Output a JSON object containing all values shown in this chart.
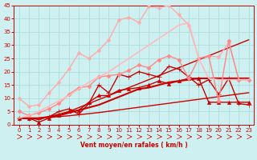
{
  "background_color": "#cff0f0",
  "grid_color": "#aadddd",
  "xlabel": "Vent moyen/en rafales ( km/h )",
  "xlabel_color": "#cc0000",
  "tick_color": "#cc0000",
  "xlim": [
    -0.5,
    23.5
  ],
  "ylim": [
    0,
    45
  ],
  "yticks": [
    0,
    5,
    10,
    15,
    20,
    25,
    30,
    35,
    40,
    45
  ],
  "xticks": [
    0,
    1,
    2,
    3,
    4,
    5,
    6,
    7,
    8,
    9,
    10,
    11,
    12,
    13,
    14,
    15,
    16,
    17,
    18,
    19,
    20,
    21,
    22,
    23
  ],
  "lines": [
    {
      "x": [
        0,
        1,
        2,
        3,
        4,
        5,
        6,
        7,
        8,
        9,
        10,
        11,
        12,
        13,
        14,
        15,
        16,
        17,
        18,
        19,
        20,
        21,
        22,
        23
      ],
      "y": [
        2.5,
        2.5,
        2.5,
        2.8,
        3.1,
        3.4,
        3.8,
        4.2,
        4.6,
        5.1,
        5.6,
        6.1,
        6.6,
        7.1,
        7.6,
        8.1,
        8.6,
        9.1,
        9.6,
        10.1,
        10.6,
        11.1,
        11.6,
        12.1
      ],
      "color": "#cc0000",
      "linewidth": 1.0,
      "marker": null,
      "linestyle": "-"
    },
    {
      "x": [
        0,
        1,
        2,
        3,
        4,
        5,
        6,
        7,
        8,
        9,
        10,
        11,
        12,
        13,
        14,
        15,
        16,
        17,
        18,
        19,
        20,
        21,
        22,
        23
      ],
      "y": [
        2.5,
        2.5,
        2.5,
        3.0,
        4.0,
        5.0,
        6.5,
        8.0,
        9.5,
        11.0,
        12.5,
        14.0,
        15.5,
        17.0,
        18.5,
        20.0,
        21.5,
        23.0,
        24.5,
        26.0,
        27.5,
        29.0,
        30.5,
        32.0
      ],
      "color": "#cc0000",
      "linewidth": 1.0,
      "marker": null,
      "linestyle": "-"
    },
    {
      "x": [
        0,
        1,
        2,
        3,
        4,
        5,
        6,
        7,
        8,
        9,
        10,
        11,
        12,
        13,
        14,
        15,
        16,
        17,
        18,
        19,
        20,
        21,
        22,
        23
      ],
      "y": [
        2.5,
        2.5,
        2.0,
        3.0,
        5.0,
        6.0,
        4.0,
        8.0,
        15.0,
        12.0,
        19.0,
        18.0,
        20.0,
        19.0,
        18.0,
        22.0,
        21.0,
        18.0,
        15.0,
        17.0,
        11.5,
        17.5,
        8.0,
        7.5
      ],
      "color": "#cc0000",
      "linewidth": 1.0,
      "marker": "+",
      "markersize": 4,
      "linestyle": "-"
    },
    {
      "x": [
        0,
        1,
        2,
        3,
        4,
        5,
        6,
        7,
        8,
        9,
        10,
        11,
        12,
        13,
        14,
        15,
        16,
        17,
        18,
        19,
        20,
        21,
        22,
        23
      ],
      "y": [
        2.5,
        2.5,
        1.0,
        2.5,
        3.5,
        5.0,
        5.5,
        8.5,
        11.0,
        11.0,
        13.0,
        13.5,
        14.0,
        15.0,
        16.5,
        15.5,
        16.5,
        17.5,
        17.5,
        8.5,
        8.5,
        8.5,
        8.5,
        8.5
      ],
      "color": "#cc0000",
      "linewidth": 1.0,
      "marker": "^",
      "markersize": 3,
      "linestyle": "-"
    },
    {
      "x": [
        0,
        1,
        2,
        3,
        4,
        5,
        6,
        7,
        8,
        9,
        10,
        11,
        12,
        13,
        14,
        15,
        16,
        17,
        18,
        19,
        20,
        21,
        22,
        23
      ],
      "y": [
        2.5,
        2.5,
        2.5,
        3.0,
        3.5,
        4.5,
        5.5,
        6.5,
        7.5,
        9.0,
        10.5,
        12.0,
        13.5,
        14.0,
        15.0,
        16.0,
        16.5,
        17.0,
        17.5,
        17.5,
        17.5,
        17.5,
        17.5,
        17.5
      ],
      "color": "#cc0000",
      "linewidth": 1.5,
      "marker": null,
      "linestyle": "-"
    },
    {
      "x": [
        0,
        1,
        2,
        3,
        4,
        5,
        6,
        7,
        8,
        9,
        10,
        11,
        12,
        13,
        14,
        15,
        16,
        17,
        18,
        19,
        20,
        21,
        22,
        23
      ],
      "y": [
        10.0,
        7.0,
        7.5,
        12.0,
        16.0,
        21.0,
        27.0,
        25.0,
        28.0,
        32.0,
        39.5,
        40.5,
        38.5,
        44.5,
        44.0,
        45.0,
        41.5,
        37.5,
        25.0,
        26.0,
        25.5,
        31.0,
        17.0,
        17.0
      ],
      "color": "#ffaaaa",
      "linewidth": 1.0,
      "marker": "o",
      "markersize": 2.5,
      "linestyle": "-"
    },
    {
      "x": [
        0,
        1,
        2,
        3,
        4,
        5,
        6,
        7,
        8,
        9,
        10,
        11,
        12,
        13,
        14,
        15,
        16,
        17,
        18,
        19,
        20,
        21,
        22,
        23
      ],
      "y": [
        5.0,
        3.5,
        4.5,
        6.0,
        8.0,
        11.5,
        14.0,
        14.5,
        18.0,
        18.5,
        19.0,
        20.5,
        22.5,
        21.5,
        24.5,
        26.0,
        24.5,
        17.5,
        25.0,
        26.0,
        9.0,
        31.5,
        17.0,
        17.0
      ],
      "color": "#ff8888",
      "linewidth": 1.0,
      "marker": "D",
      "markersize": 2.5,
      "linestyle": "-"
    },
    {
      "x": [
        0,
        1,
        2,
        3,
        4,
        5,
        6,
        7,
        8,
        9,
        10,
        11,
        12,
        13,
        14,
        15,
        16,
        17,
        18,
        19,
        20,
        21,
        22,
        23
      ],
      "y": [
        2.5,
        3.5,
        5.0,
        7.0,
        9.0,
        11.0,
        13.5,
        16.0,
        18.0,
        20.0,
        22.5,
        25.0,
        27.5,
        30.0,
        32.5,
        35.0,
        37.5,
        38.5,
        25.0,
        17.5,
        17.0,
        17.0,
        17.0,
        17.0
      ],
      "color": "#ffbbbb",
      "linewidth": 1.2,
      "marker": null,
      "linestyle": "-"
    }
  ],
  "wind_arrows": [
    0,
    1,
    2,
    3,
    4,
    5,
    6,
    7,
    8,
    9,
    10,
    11,
    12,
    13,
    14,
    15,
    16,
    17,
    18,
    19,
    20,
    21,
    22,
    23
  ]
}
